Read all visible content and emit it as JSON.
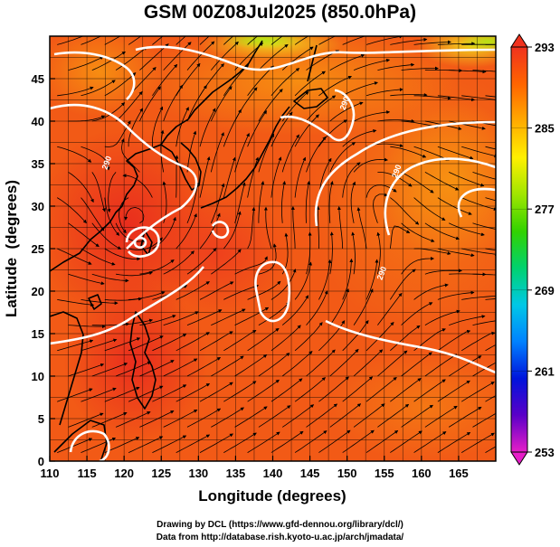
{
  "title": "GSM 00Z08Jul2025 (850.0hPa)",
  "credits": {
    "line1": "Drawing by DCL (https://www.gfd-dennou.org/library/dcl/)",
    "line2": "Data from http://database.rish.kyoto-u.ac.jp/arch/jmadata/"
  },
  "chart_data": {
    "type": "heatmap",
    "xlabel": "Longitude (degrees)",
    "ylabel": "Latitude  (degrees)",
    "xlim": [
      110,
      170
    ],
    "ylim": [
      0,
      50
    ],
    "xticks": [
      110,
      115,
      120,
      125,
      130,
      135,
      140,
      145,
      150,
      155,
      160,
      165
    ],
    "yticks": [
      0,
      5,
      10,
      15,
      20,
      25,
      30,
      35,
      40,
      45
    ],
    "grid": true,
    "colorbar": {
      "ticks": [
        253,
        261,
        269,
        277,
        285,
        293
      ],
      "range": [
        253,
        293
      ],
      "colors": [
        "#e61ec8",
        "#5a00c8",
        "#0014dc",
        "#0082ff",
        "#00c8e6",
        "#00d26e",
        "#32d200",
        "#a0e600",
        "#fff000",
        "#ffaa00",
        "#ff6400",
        "#f0321e"
      ]
    },
    "contour_labels": [
      {
        "text": "290",
        "lon": 118,
        "lat": 35
      },
      {
        "text": "290",
        "lon": 150,
        "lat": 42
      },
      {
        "text": "290",
        "lon": 157,
        "lat": 34
      },
      {
        "text": "290",
        "lon": 155,
        "lat": 22
      }
    ]
  }
}
